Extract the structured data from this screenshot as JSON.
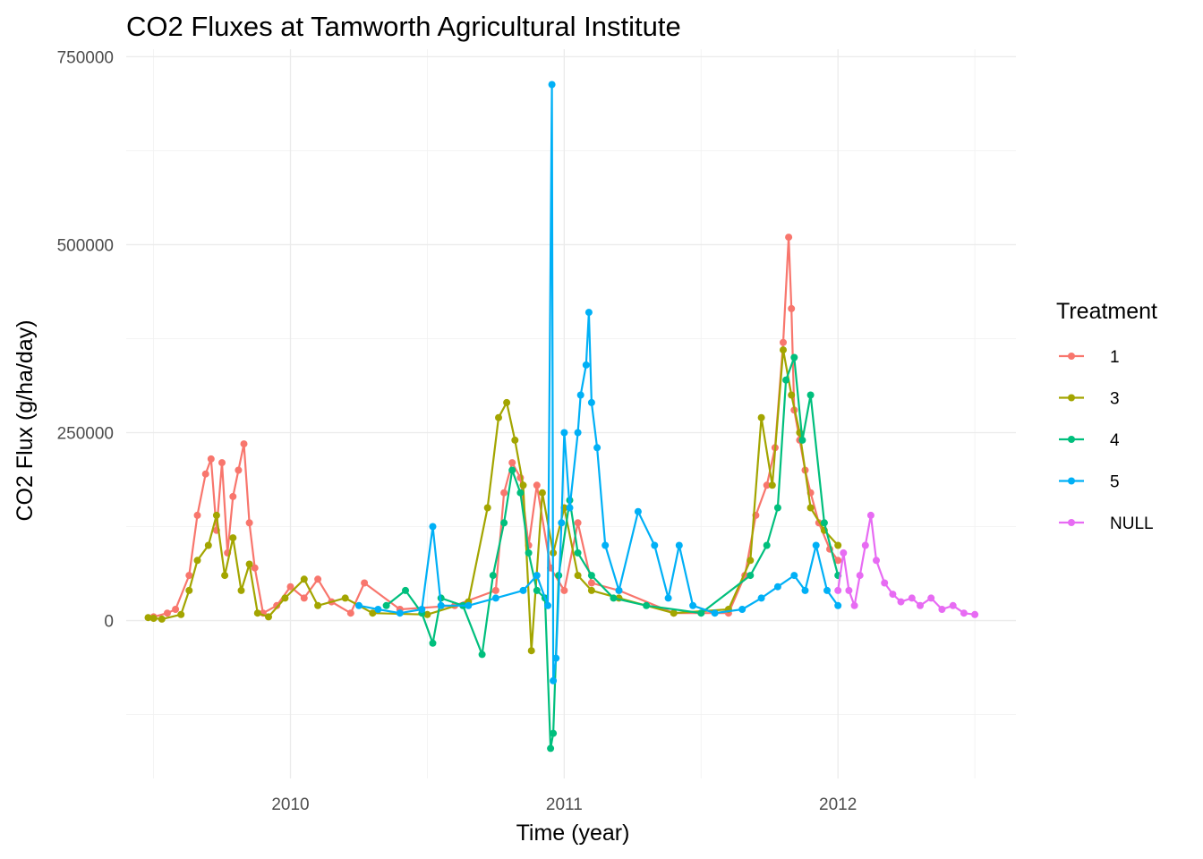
{
  "chart_data": {
    "type": "line",
    "title": "CO2 Fluxes at Tamworth Agricultural Institute",
    "xlabel": "Time (year)",
    "ylabel": "CO2 Flux (g/ha/day)",
    "xlim": [
      2009.4,
      2012.65
    ],
    "ylim": [
      -210000,
      760000
    ],
    "x_ticks": [
      2010,
      2011,
      2012
    ],
    "x_tick_labels": [
      "2010",
      "2011",
      "2012"
    ],
    "y_ticks": [
      0,
      250000,
      500000,
      750000
    ],
    "y_tick_labels": [
      "0",
      "250000",
      "500000",
      "750000"
    ],
    "grid": true,
    "legend": {
      "title": "Treatment",
      "position": "right"
    },
    "series": [
      {
        "name": "1",
        "color": "#F8766D",
        "x": [
          2009.5,
          2009.55,
          2009.58,
          2009.63,
          2009.66,
          2009.69,
          2009.71,
          2009.73,
          2009.75,
          2009.77,
          2009.79,
          2009.81,
          2009.83,
          2009.85,
          2009.87,
          2009.9,
          2009.95,
          2010.0,
          2010.05,
          2010.1,
          2010.15,
          2010.22,
          2010.27,
          2010.4,
          2010.6,
          2010.75,
          2010.78,
          2010.81,
          2010.84,
          2010.87,
          2010.9,
          2010.95,
          2011.0,
          2011.05,
          2011.1,
          2011.2,
          2011.4,
          2011.6,
          2011.66,
          2011.7,
          2011.74,
          2011.77,
          2011.8,
          2011.82,
          2011.83,
          2011.84,
          2011.86,
          2011.88,
          2011.9,
          2011.93,
          2011.97,
          2012.0
        ],
        "y": [
          5000,
          10000,
          15000,
          60000,
          140000,
          195000,
          215000,
          120000,
          210000,
          90000,
          165000,
          200000,
          235000,
          130000,
          70000,
          10000,
          20000,
          45000,
          30000,
          55000,
          25000,
          10000,
          50000,
          15000,
          20000,
          40000,
          170000,
          210000,
          190000,
          100000,
          180000,
          70000,
          40000,
          130000,
          50000,
          40000,
          10000,
          10000,
          60000,
          140000,
          180000,
          230000,
          370000,
          510000,
          415000,
          280000,
          240000,
          200000,
          170000,
          130000,
          95000,
          80000
        ]
      },
      {
        "name": "3",
        "color": "#A3A500",
        "x": [
          2009.48,
          2009.5,
          2009.53,
          2009.6,
          2009.63,
          2009.66,
          2009.7,
          2009.73,
          2009.76,
          2009.79,
          2009.82,
          2009.85,
          2009.88,
          2009.92,
          2009.98,
          2010.05,
          2010.1,
          2010.2,
          2010.3,
          2010.5,
          2010.65,
          2010.72,
          2010.76,
          2010.79,
          2010.82,
          2010.85,
          2010.88,
          2010.92,
          2010.96,
          2011.0,
          2011.05,
          2011.1,
          2011.2,
          2011.4,
          2011.6,
          2011.68,
          2011.72,
          2011.76,
          2011.8,
          2011.83,
          2011.86,
          2011.9,
          2011.95,
          2012.0
        ],
        "y": [
          4000,
          3000,
          2000,
          8000,
          40000,
          80000,
          100000,
          140000,
          60000,
          110000,
          40000,
          75000,
          10000,
          5000,
          30000,
          55000,
          20000,
          30000,
          10000,
          8000,
          25000,
          150000,
          270000,
          290000,
          240000,
          180000,
          -40000,
          170000,
          90000,
          150000,
          60000,
          40000,
          30000,
          10000,
          15000,
          80000,
          270000,
          180000,
          360000,
          300000,
          250000,
          150000,
          120000,
          100000
        ]
      },
      {
        "name": "4",
        "color": "#00BF7D",
        "x": [
          2010.35,
          2010.42,
          2010.48,
          2010.52,
          2010.55,
          2010.63,
          2010.7,
          2010.74,
          2010.78,
          2010.81,
          2010.84,
          2010.87,
          2010.9,
          2010.93,
          2010.95,
          2010.96,
          2010.98,
          2011.02,
          2011.05,
          2011.1,
          2011.18,
          2011.3,
          2011.5,
          2011.68,
          2011.74,
          2011.78,
          2011.81,
          2011.84,
          2011.87,
          2011.9,
          2011.95,
          2012.0
        ],
        "y": [
          20000,
          40000,
          10000,
          -30000,
          30000,
          20000,
          -45000,
          60000,
          130000,
          200000,
          170000,
          90000,
          40000,
          30000,
          -170000,
          -150000,
          60000,
          160000,
          90000,
          60000,
          30000,
          20000,
          10000,
          60000,
          100000,
          150000,
          320000,
          350000,
          240000,
          300000,
          130000,
          60000
        ]
      },
      {
        "name": "5",
        "color": "#00B0F6",
        "x": [
          2010.25,
          2010.32,
          2010.4,
          2010.48,
          2010.52,
          2010.55,
          2010.65,
          2010.75,
          2010.85,
          2010.9,
          2010.94,
          2010.955,
          2010.96,
          2010.97,
          2010.99,
          2011.0,
          2011.02,
          2011.05,
          2011.06,
          2011.08,
          2011.09,
          2011.1,
          2011.12,
          2011.15,
          2011.2,
          2011.27,
          2011.33,
          2011.38,
          2011.42,
          2011.47,
          2011.55,
          2011.65,
          2011.72,
          2011.78,
          2011.84,
          2011.88,
          2011.92,
          2011.96,
          2012.0
        ],
        "y": [
          20000,
          15000,
          10000,
          15000,
          125000,
          20000,
          20000,
          30000,
          40000,
          60000,
          20000,
          713000,
          -80000,
          -50000,
          130000,
          250000,
          150000,
          250000,
          300000,
          340000,
          410000,
          290000,
          230000,
          100000,
          40000,
          145000,
          100000,
          30000,
          100000,
          20000,
          10000,
          15000,
          30000,
          45000,
          60000,
          40000,
          100000,
          40000,
          20000
        ]
      },
      {
        "name": "NULL",
        "color": "#E76BF3",
        "x": [
          2012.0,
          2012.02,
          2012.04,
          2012.06,
          2012.08,
          2012.1,
          2012.12,
          2012.14,
          2012.17,
          2012.2,
          2012.23,
          2012.27,
          2012.3,
          2012.34,
          2012.38,
          2012.42,
          2012.46,
          2012.5
        ],
        "y": [
          40000,
          90000,
          40000,
          20000,
          60000,
          100000,
          140000,
          80000,
          50000,
          35000,
          25000,
          30000,
          20000,
          30000,
          15000,
          20000,
          10000,
          8000
        ]
      }
    ]
  }
}
